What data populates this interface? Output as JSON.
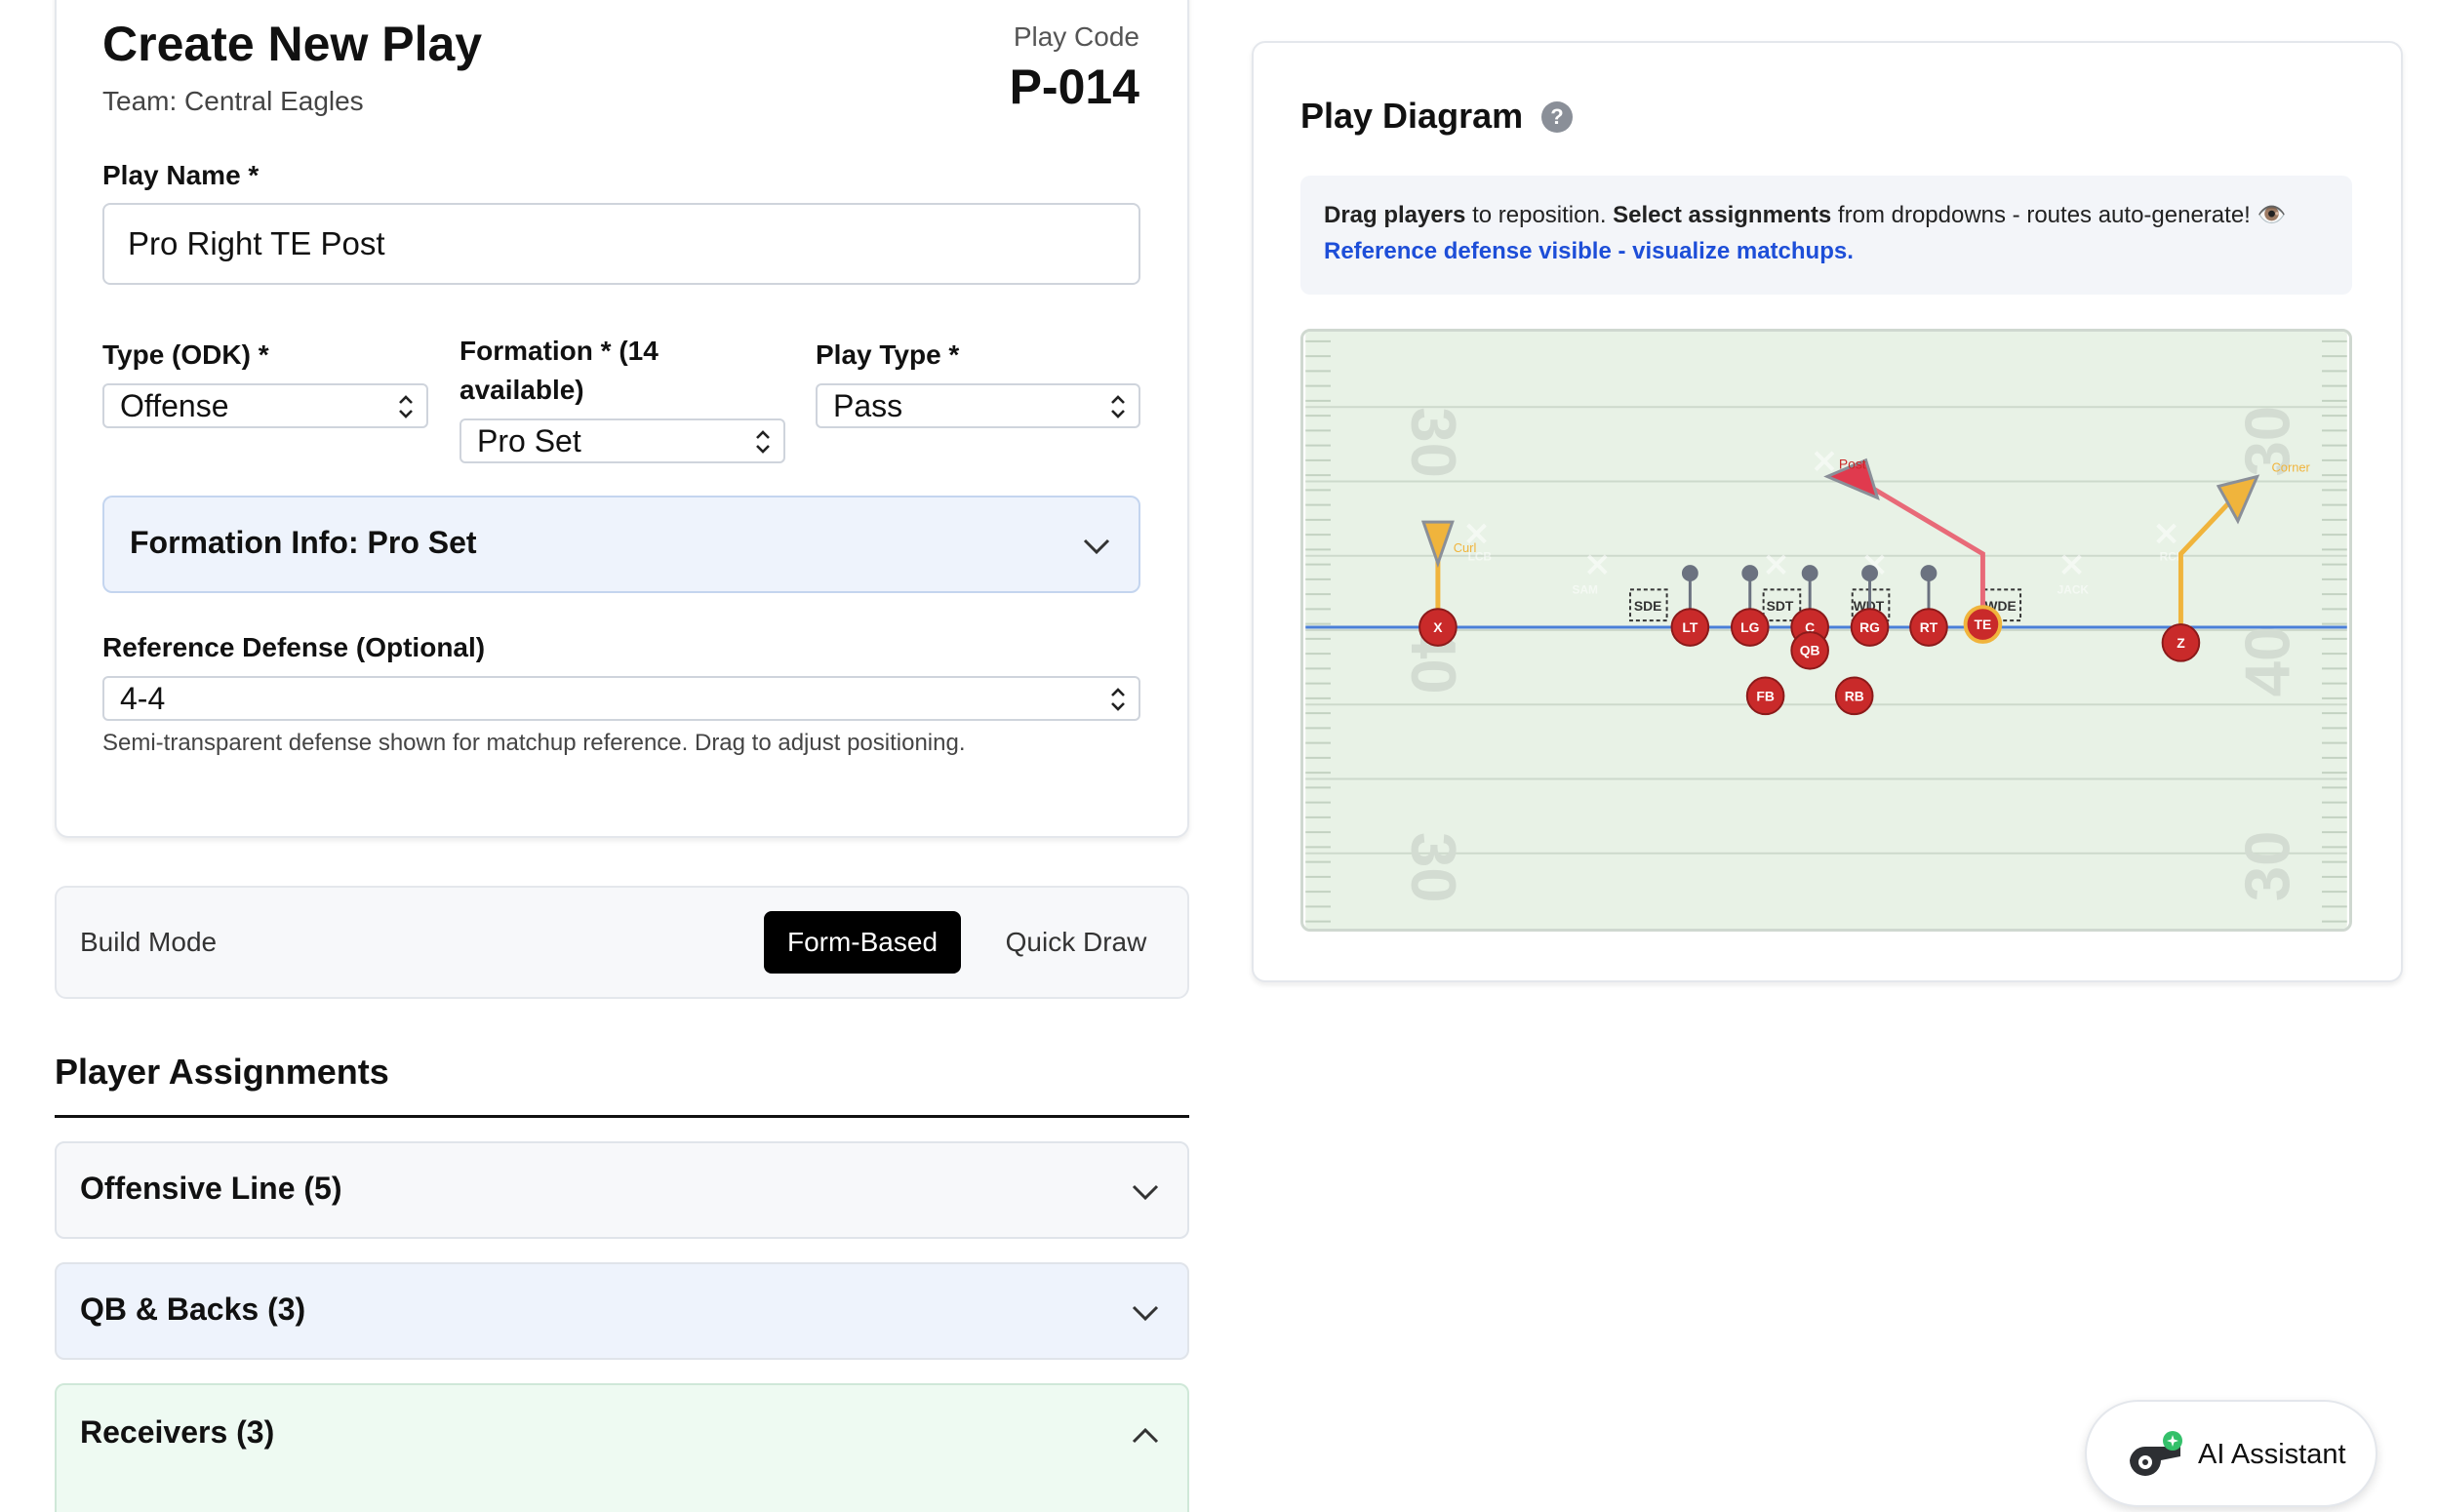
{
  "form": {
    "title": "Create New Play",
    "team_line": "Team: Central Eagles",
    "play_code_label": "Play Code",
    "play_code": "P-014",
    "play_name_label": "Play Name *",
    "play_name_value": "Pro Right TE Post",
    "type_label": "Type (ODK) *",
    "type_value": "Offense",
    "formation_label_1": "Formation * (14",
    "formation_label_2": "available)",
    "formation_value": "Pro Set",
    "play_type_label": "Play Type *",
    "play_type_value": "Pass",
    "formation_info": "Formation Info: Pro Set",
    "ref_defense_label": "Reference Defense (Optional)",
    "ref_defense_value": "4-4",
    "ref_defense_help": "Semi-transparent defense shown for matchup reference. Drag to adjust positioning."
  },
  "build_mode": {
    "label": "Build Mode",
    "options": [
      "Form-Based",
      "Quick Draw"
    ],
    "selected": "Form-Based"
  },
  "assignments": {
    "title": "Player Assignments",
    "groups": [
      {
        "label": "Offensive Line (5)",
        "expanded": false,
        "color": "#f7f8fa"
      },
      {
        "label": "QB & Backs (3)",
        "expanded": false,
        "color": "#eef3fc"
      },
      {
        "label": "Receivers (3)",
        "expanded": true,
        "color": "#eefaf2"
      }
    ]
  },
  "diagram": {
    "title": "Play Diagram",
    "help_glyph": "?",
    "tip_bold_1": "Drag players",
    "tip_text_1": " to reposition. ",
    "tip_bold_2": "Select assignments",
    "tip_text_2": " from dropdowns - routes auto-generate! 👁️",
    "tip_link": "Reference defense visible - visualize matchups.",
    "yard_numbers": [
      "30",
      "40",
      "30"
    ],
    "offense_players": [
      "X",
      "LT",
      "LG",
      "C",
      "RG",
      "RT",
      "TE",
      "Z",
      "QB",
      "FB",
      "RB"
    ],
    "defense_boxes": [
      "SDE",
      "SDT",
      "WDT",
      "WDE"
    ],
    "defense_x": [
      "LCB",
      "SAM",
      "JACK",
      "RCB"
    ],
    "route_labels": [
      "Curl",
      "Post",
      "Corner"
    ],
    "colors": {
      "field": "#e8f2e6",
      "player": "#c92a2a",
      "route_yellow": "#f0b43c",
      "route_red": "#e86a78",
      "los": "#4a7fd8"
    }
  },
  "ai_assistant": {
    "label": "AI Assistant",
    "icon": "whistle-icon"
  }
}
